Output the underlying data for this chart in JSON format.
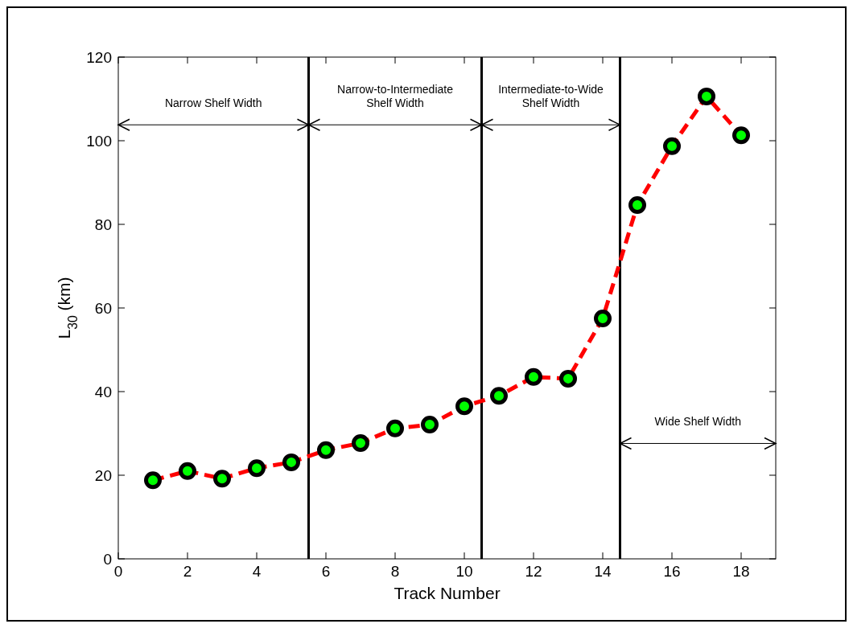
{
  "chart_data": {
    "type": "line",
    "xlabel": "Track Number",
    "ylabel": "L$_{30}$ (km)",
    "x": [
      1,
      2,
      3,
      4,
      5,
      6,
      7,
      8,
      9,
      10,
      11,
      12,
      13,
      14,
      15,
      16,
      17,
      18
    ],
    "series": [
      {
        "color": "#ff0000",
        "values": [
          18.8,
          21.0,
          19.2,
          21.7,
          23.1,
          26.0,
          27.7,
          31.2,
          32.1,
          36.5,
          39.0,
          43.5,
          43.1,
          57.5,
          84.6,
          98.7,
          110.6,
          101.3
        ]
      }
    ],
    "xlim": [
      0,
      19
    ],
    "ylim": [
      0,
      120
    ],
    "xticks": [
      0,
      2,
      4,
      6,
      8,
      10,
      12,
      14,
      16,
      18
    ],
    "yticks": [
      0,
      20,
      40,
      60,
      80,
      100,
      120
    ],
    "marker": "circle",
    "line_style": "dashed",
    "grid": false,
    "ref_lines": [
      {
        "axis": "x",
        "value": 5.5,
        "color": "#000000"
      },
      {
        "axis": "x",
        "value": 10.5,
        "color": "#000000"
      },
      {
        "axis": "x",
        "value": 14.5,
        "color": "#000000"
      }
    ],
    "annotations": [
      "Narrow Shelf Width",
      "Narrow-to-Intermediate\nShelf Width",
      "Intermediate-to-Wide\nShelf Width",
      "Wide Shelf Width"
    ]
  }
}
